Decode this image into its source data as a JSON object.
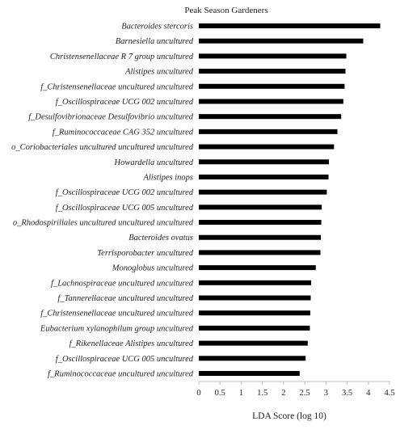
{
  "chart_data": {
    "type": "bar",
    "orientation": "horizontal",
    "title": "Peak Season Gardeners",
    "xlabel": "LDA Score (log 10)",
    "ylabel": "",
    "xlim": [
      0,
      4.5
    ],
    "xticks": [
      "0",
      "0.5",
      "1",
      "1.5",
      "2",
      "2.5",
      "3",
      "3.5",
      "4",
      "4.5"
    ],
    "grid": false,
    "bar_color": "#000000",
    "categories": [
      "Bacteroides stercoris",
      "Barnesiella uncultured",
      "Christensenellaceae R 7 group uncultured",
      "Alistipes uncultured",
      "f_Christensenellaceae uncultured uncultured",
      "f_Oscillospiraceae UCG 002 uncultured",
      "f_Desulfovibrionaceae Desulfovibrio uncultured",
      "f_Ruminococcaceae CAG 352 uncultured",
      "o_Coriobacteriales uncultured uncultured uncultured",
      "Howardella uncultured",
      "Alistipes inops",
      "f_Oscillospiraceae UCG 002 uncultured",
      "f_Oscillospiraceae UCG 005 uncultured",
      "o_Rhodospirillales uncultured uncultured uncultured",
      "Bacteroides ovatus",
      "Terrisporobacter uncultured",
      "Monoglobus uncultured",
      "f_Lachnospiraceae uncultured uncultured",
      "f_Tannerellaceae uncultured uncultured",
      "f_Christensenellaceae uncultured uncultured",
      "Eubacterium xylanophilum group uncultured",
      "f_Rikenellaceae Alistipes uncultured",
      "f_Oscillospiraceae UCG 005 uncultured",
      "f_Ruminococcaceae uncultured uncultured"
    ],
    "values": [
      4.28,
      3.88,
      3.48,
      3.46,
      3.44,
      3.41,
      3.36,
      3.27,
      3.19,
      3.07,
      3.06,
      3.02,
      2.9,
      2.89,
      2.88,
      2.87,
      2.76,
      2.65,
      2.64,
      2.63,
      2.62,
      2.57,
      2.52,
      2.38
    ]
  }
}
